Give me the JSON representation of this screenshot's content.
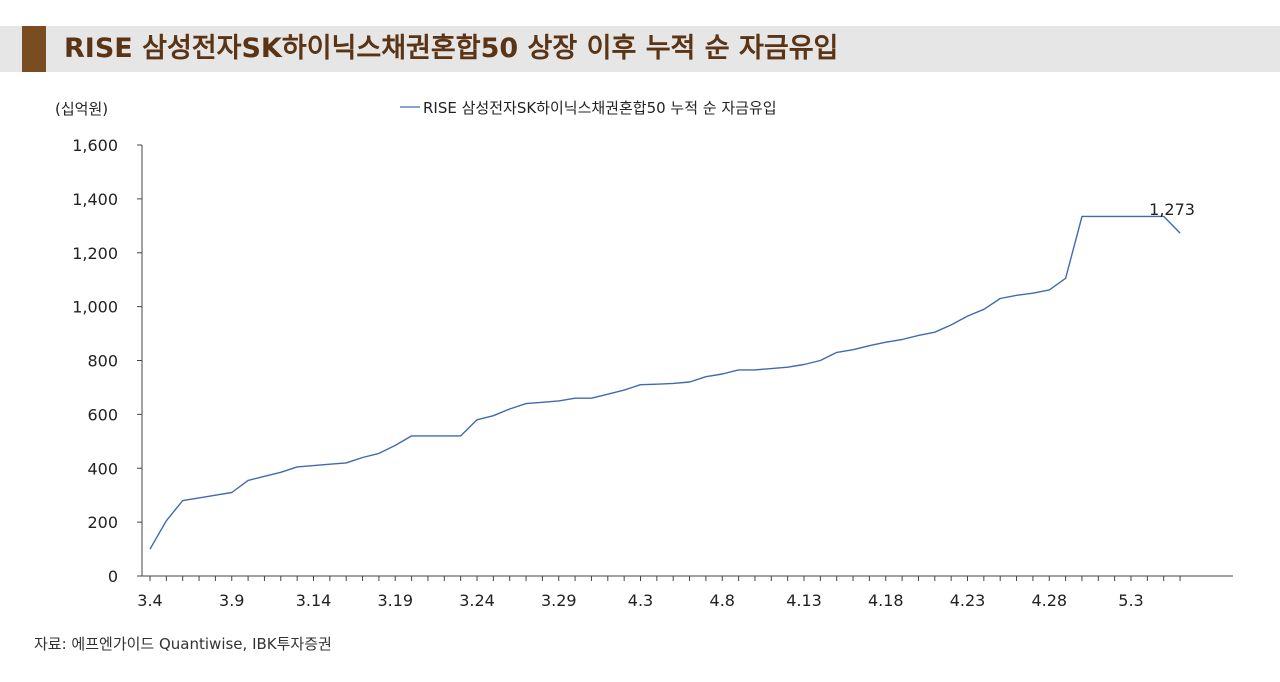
{
  "title": "RISE 삼성전자SK하이닉스채권혼합50 상장 이후 누적 순 자금유입",
  "source": "자료: 에프엔가이드 Quantiwise, IBK투자증권",
  "colors": {
    "title_text": "#5a3414",
    "title_accent": "#7a4c22",
    "title_background": "#e6e6e6",
    "series_line": "#3e6bb0",
    "axis": "#444444"
  },
  "chart_data": {
    "type": "line",
    "ylabel": "(십억원)",
    "ylim": [
      0,
      1600
    ],
    "y_ticks": [
      0,
      200,
      400,
      600,
      800,
      1000,
      1200,
      1400,
      1600
    ],
    "y_tick_labels": [
      "0",
      "200",
      "400",
      "600",
      "800",
      "1,000",
      "1,200",
      "1,400",
      "1,600"
    ],
    "x_tick_labels": [
      "3.4",
      "3.9",
      "3.14",
      "3.19",
      "3.24",
      "3.29",
      "4.3",
      "4.8",
      "4.13",
      "4.18",
      "4.23",
      "4.28",
      "5.3"
    ],
    "grid": false,
    "legend_position": "top-center",
    "series": [
      {
        "name": "RISE 삼성전자SK하이닉스채권혼합50 누적 순 자금유입",
        "x": [
          "3.4",
          "3.5",
          "3.6",
          "3.7",
          "3.8",
          "3.9",
          "3.10",
          "3.11",
          "3.12",
          "3.13",
          "3.14",
          "3.15",
          "3.16",
          "3.17",
          "3.18",
          "3.19",
          "3.20",
          "3.21",
          "3.22",
          "3.23",
          "3.24",
          "3.25",
          "3.26",
          "3.27",
          "3.28",
          "3.29",
          "3.30",
          "3.31",
          "4.1",
          "4.2",
          "4.3",
          "4.4",
          "4.5",
          "4.6",
          "4.7",
          "4.8",
          "4.9",
          "4.10",
          "4.11",
          "4.12",
          "4.13",
          "4.14",
          "4.15",
          "4.16",
          "4.17",
          "4.18",
          "4.19",
          "4.20",
          "4.21",
          "4.22",
          "4.23",
          "4.24",
          "4.25",
          "4.26",
          "4.27",
          "4.28",
          "4.29",
          "4.30",
          "5.1",
          "5.2",
          "5.3",
          "5.4",
          "5.5",
          "5.6"
        ],
        "values": [
          100,
          205,
          280,
          290,
          300,
          310,
          355,
          370,
          385,
          405,
          410,
          415,
          420,
          440,
          455,
          485,
          520,
          520,
          520,
          520,
          580,
          595,
          620,
          640,
          645,
          650,
          660,
          660,
          675,
          690,
          710,
          712,
          715,
          720,
          740,
          750,
          765,
          765,
          770,
          775,
          785,
          800,
          830,
          840,
          855,
          868,
          878,
          893,
          905,
          932,
          965,
          990,
          1030,
          1042,
          1050,
          1062,
          1105,
          1335,
          1335,
          1335,
          1335,
          1335,
          1335,
          1273
        ],
        "end_label": "1,273"
      }
    ]
  }
}
